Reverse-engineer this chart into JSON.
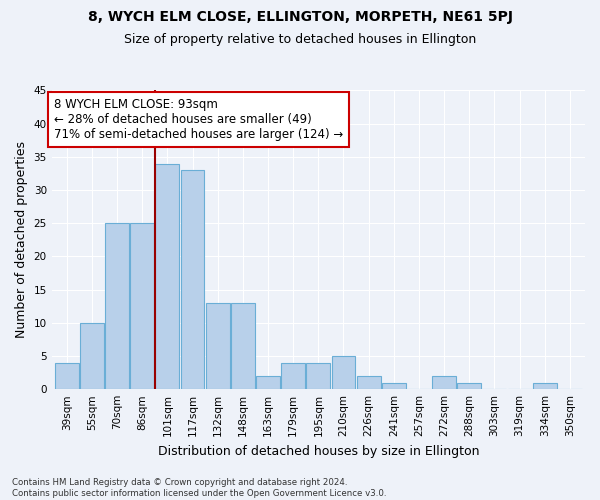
{
  "title1": "8, WYCH ELM CLOSE, ELLINGTON, MORPETH, NE61 5PJ",
  "title2": "Size of property relative to detached houses in Ellington",
  "xlabel": "Distribution of detached houses by size in Ellington",
  "ylabel": "Number of detached properties",
  "footnote": "Contains HM Land Registry data © Crown copyright and database right 2024.\nContains public sector information licensed under the Open Government Licence v3.0.",
  "categories": [
    "39sqm",
    "55sqm",
    "70sqm",
    "86sqm",
    "101sqm",
    "117sqm",
    "132sqm",
    "148sqm",
    "163sqm",
    "179sqm",
    "195sqm",
    "210sqm",
    "226sqm",
    "241sqm",
    "257sqm",
    "272sqm",
    "288sqm",
    "303sqm",
    "319sqm",
    "334sqm",
    "350sqm"
  ],
  "values": [
    4,
    10,
    25,
    25,
    34,
    33,
    13,
    13,
    2,
    4,
    4,
    5,
    2,
    1,
    0,
    2,
    1,
    0,
    0,
    1,
    0
  ],
  "bar_color": "#b8d0ea",
  "bar_edge_color": "#6aaed6",
  "vline_color": "#990000",
  "annotation_line1": "8 WYCH ELM CLOSE: 93sqm",
  "annotation_line2": "← 28% of detached houses are smaller (49)",
  "annotation_line3": "71% of semi-detached houses are larger (124) →",
  "annotation_box_color": "#ffffff",
  "annotation_box_edge": "#cc0000",
  "ylim": [
    0,
    45
  ],
  "yticks": [
    0,
    5,
    10,
    15,
    20,
    25,
    30,
    35,
    40,
    45
  ],
  "background_color": "#eef2f9",
  "grid_color": "#ffffff",
  "title1_fontsize": 10,
  "title2_fontsize": 9,
  "xlabel_fontsize": 9,
  "ylabel_fontsize": 9,
  "tick_fontsize": 7.5,
  "annot_fontsize": 8.5
}
